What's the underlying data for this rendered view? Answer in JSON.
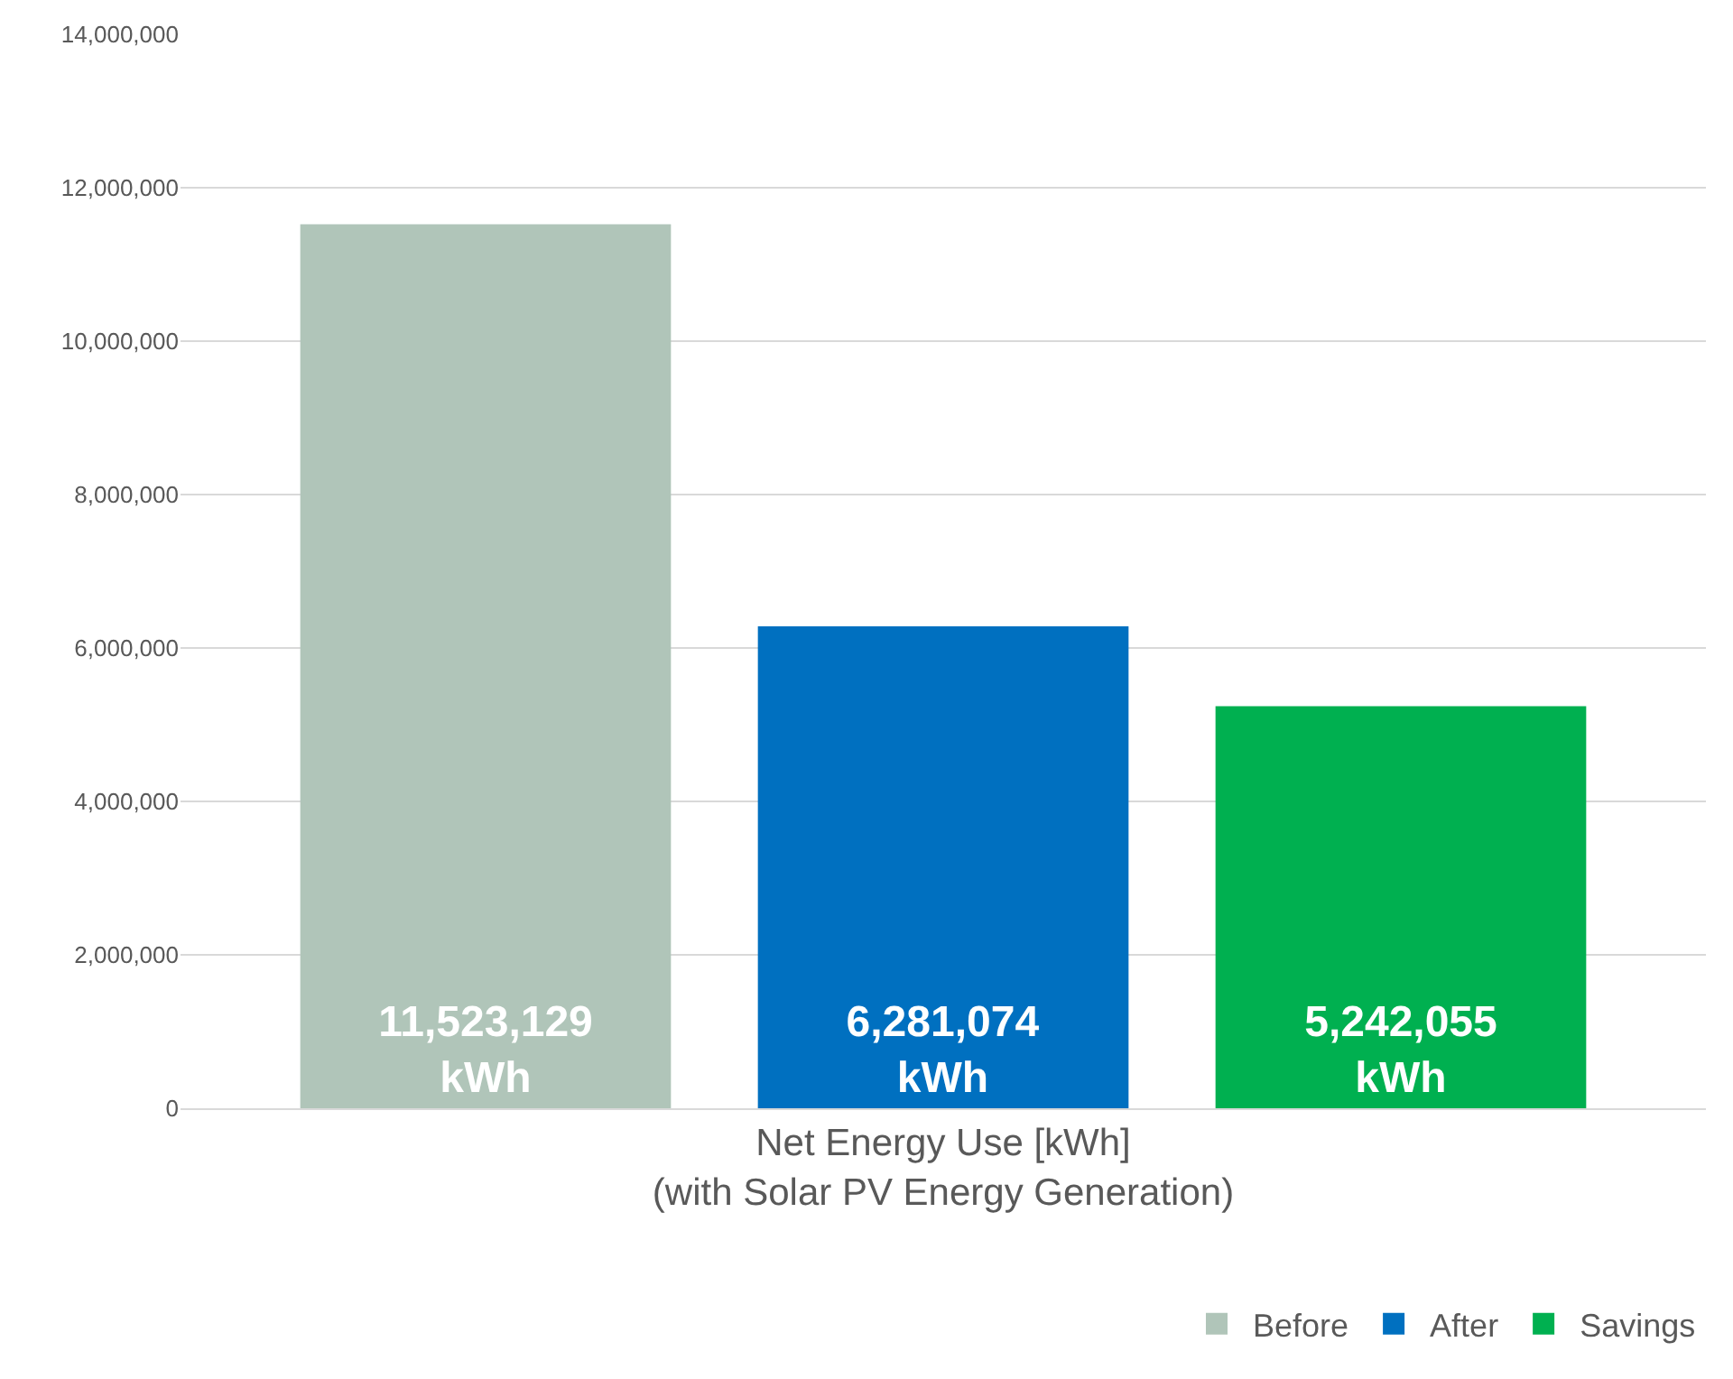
{
  "chart_data": {
    "type": "bar",
    "categories": [
      "Net Energy Use [kWh]\n(with Solar PV Energy Generation)"
    ],
    "series": [
      {
        "name": "Before",
        "color": "#b0c5b9",
        "values": [
          11523129
        ],
        "value_labels": [
          "11,523,129\nkWh"
        ]
      },
      {
        "name": "After",
        "color": "#0070c0",
        "values": [
          6281074
        ],
        "value_labels": [
          "6,281,074\nkWh"
        ]
      },
      {
        "name": "Savings",
        "color": "#00b050",
        "values": [
          5242055
        ],
        "value_labels": [
          "5,242,055\nkWh"
        ]
      }
    ],
    "ylim": [
      0,
      14000000
    ],
    "yticks": [
      {
        "value": 0,
        "label": "0"
      },
      {
        "value": 2000000,
        "label": "2,000,000"
      },
      {
        "value": 4000000,
        "label": "4,000,000"
      },
      {
        "value": 6000000,
        "label": "6,000,000"
      },
      {
        "value": 8000000,
        "label": "8,000,000"
      },
      {
        "value": 10000000,
        "label": "10,000,000"
      },
      {
        "value": 12000000,
        "label": "12,000,000"
      },
      {
        "value": 14000000,
        "label": "14,000,000"
      }
    ],
    "grid": "y",
    "legend": "bottom right"
  }
}
